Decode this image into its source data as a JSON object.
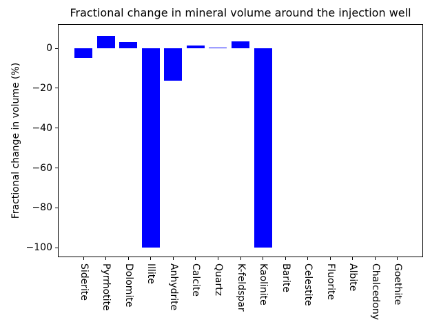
{
  "figure": {
    "title": "Fractional change in mineral volume around the injection well",
    "y_axis_label": "Fractional change in volume (%)"
  },
  "chart_data": {
    "type": "bar",
    "title": "Fractional change in mineral volume around the injection well",
    "xlabel": "",
    "ylabel": "Fractional change in volume (%)",
    "categories": [
      "Siderite",
      "Pyrrhotite",
      "Dolomite",
      "Illite",
      "Anhydrite",
      "Calcite",
      "Quartz",
      "K-feldspar",
      "Kaolinite",
      "Barite",
      "Celestite",
      "Fluorite",
      "Albite",
      "Chalcedony",
      "Goethite"
    ],
    "values": [
      -5,
      6.1,
      3,
      -100,
      -16.2,
      1.3,
      0.4,
      3.5,
      -100,
      0,
      0,
      0,
      0,
      0,
      0
    ],
    "bar_color": "#0000ff",
    "yticks": [
      0,
      -20,
      -40,
      -60,
      -80,
      -100
    ],
    "ylim": [
      -104.8,
      11.9
    ],
    "grid": false,
    "legend_position": "none"
  }
}
